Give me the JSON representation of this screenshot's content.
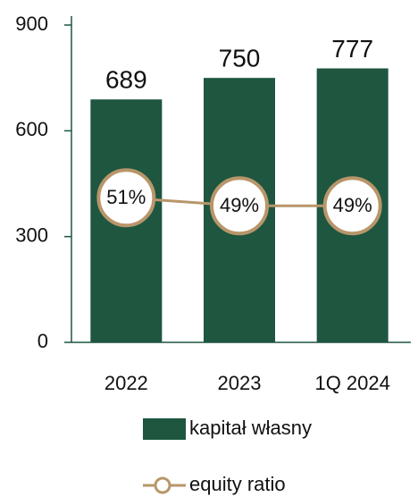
{
  "chart_data": {
    "type": "bar",
    "categories": [
      "2022",
      "2023",
      "1Q 2024"
    ],
    "series": [
      {
        "name": "kapitał własny",
        "type": "bar",
        "color": "#1e5640",
        "values": [
          689,
          750,
          777
        ]
      },
      {
        "name": "equity ratio",
        "type": "line",
        "axis": "y2",
        "color": "#b8966a",
        "values": [
          51,
          49,
          49
        ],
        "value_labels": [
          "51%",
          "49%",
          "49%"
        ]
      }
    ],
    "ylim": [
      0,
      900
    ],
    "yticks": [
      0,
      300,
      600,
      900
    ],
    "y2lim": [
      15,
      94
    ]
  }
}
